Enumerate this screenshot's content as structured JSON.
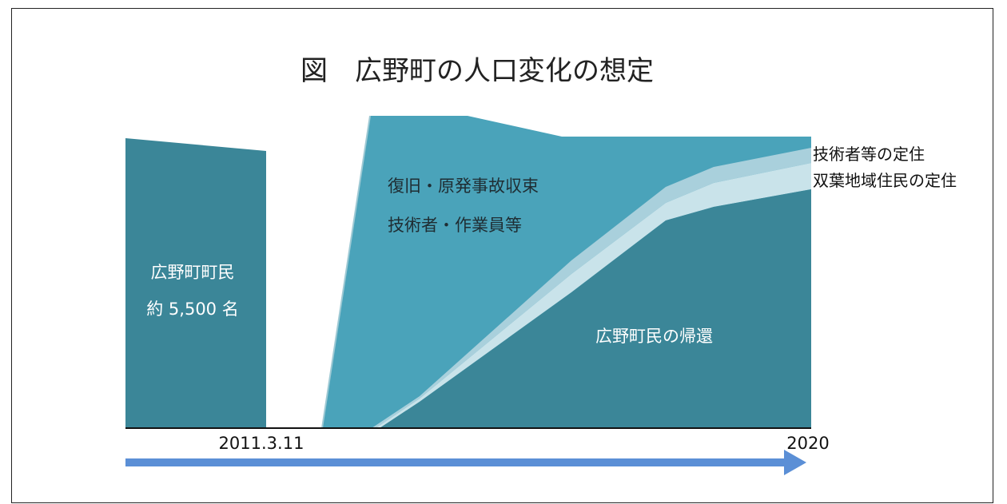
{
  "chart_data": {
    "type": "area",
    "title": "図　広野町の人口変化の想定",
    "xlabel": "",
    "ylabel": "",
    "x_labels": [
      "2011.3.11",
      "2020"
    ],
    "series": [
      {
        "name": "広野町民の帰還"
      },
      {
        "name": "双葉地域住民の定住"
      },
      {
        "name": "技術者等の定住"
      },
      {
        "name": "復旧・原発事故収束"
      }
    ],
    "annotations": {
      "pre_block_line1": "広野町町民",
      "pre_block_line2": "約 5,500 名",
      "recovery_line1": "復旧・原発事故収束",
      "recovery_line2": "技術者・作業員等",
      "return_label": "広野町民の帰還",
      "legend_1": "技術者等の定住",
      "legend_2": "双葉地域住民の定住"
    }
  },
  "colors": {
    "dark_teal": "#3b8698",
    "medium_teal": "#4aa3ba",
    "light_band_1": "#a9d0dc",
    "light_band_2": "#c9e3ea",
    "arrow_blue": "#5b8fd6",
    "border": "#222222"
  }
}
